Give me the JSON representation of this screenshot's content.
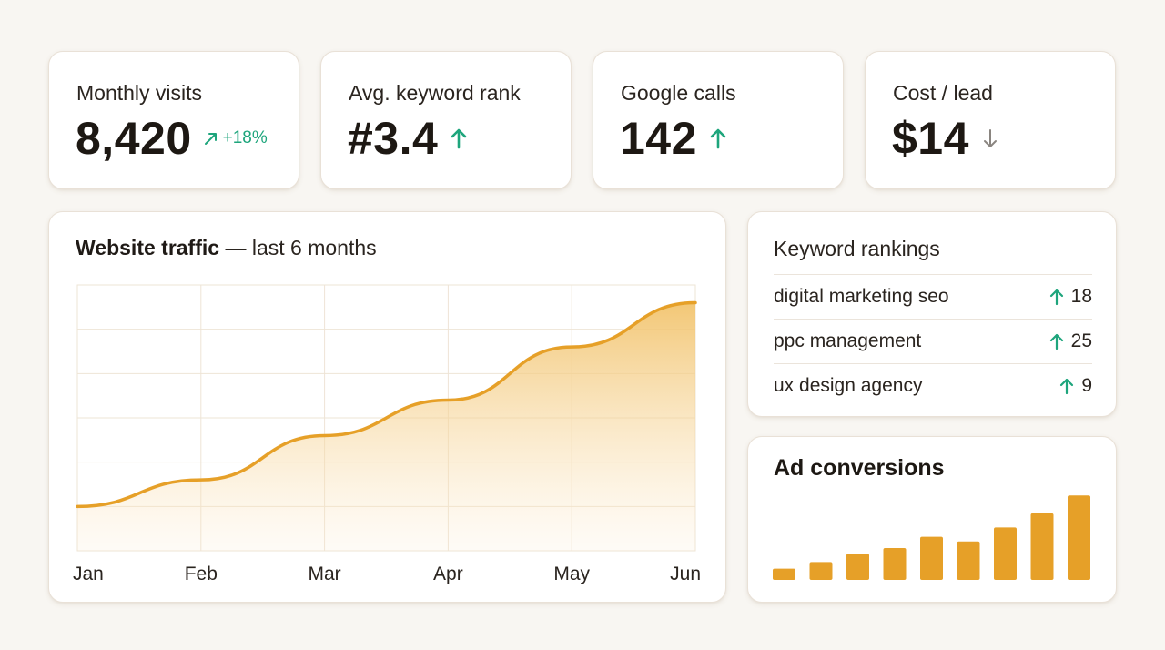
{
  "kpis": [
    {
      "label": "Monthly visits",
      "value": "8,420",
      "trend": "up",
      "delta": "+18%",
      "color": "#1ea57c"
    },
    {
      "label": "Avg. keyword rank",
      "value": "#3.4",
      "trend": "up",
      "delta": "",
      "color": "#1ea57c"
    },
    {
      "label": "Google calls",
      "value": "142",
      "trend": "up",
      "delta": "",
      "color": "#1ea57c"
    },
    {
      "label": "Cost / lead",
      "value": "$14",
      "trend": "down",
      "delta": "",
      "color": "#8a8580"
    }
  ],
  "traffic": {
    "title_strong": "Website traffic",
    "title_rest": " — last 6 months"
  },
  "keywords": {
    "title": "Keyword rankings",
    "items": [
      {
        "term": "digital marketing seo",
        "trend": "up",
        "rank": "18"
      },
      {
        "term": "ppc management",
        "trend": "up",
        "rank": "25"
      },
      {
        "term": "ux design agency",
        "trend": "up",
        "rank": "9"
      }
    ]
  },
  "ads": {
    "title": "Ad conversions"
  },
  "chart_data": [
    {
      "type": "area",
      "title": "Website traffic — last 6 months",
      "categories": [
        "Jan",
        "Feb",
        "Mar",
        "Apr",
        "May",
        "Jun"
      ],
      "values": [
        1.0,
        1.6,
        2.6,
        3.4,
        4.6,
        5.6
      ],
      "ylim": [
        0,
        6
      ],
      "grid": true,
      "color": "#e6a028",
      "fill_color": "#f3c978"
    },
    {
      "type": "bar",
      "title": "Ad conversions",
      "values": [
        1.2,
        1.9,
        2.8,
        3.4,
        4.6,
        4.1,
        5.6,
        7.1,
        9.0
      ],
      "ylim": [
        0,
        10
      ],
      "color": "#e6a028"
    }
  ]
}
